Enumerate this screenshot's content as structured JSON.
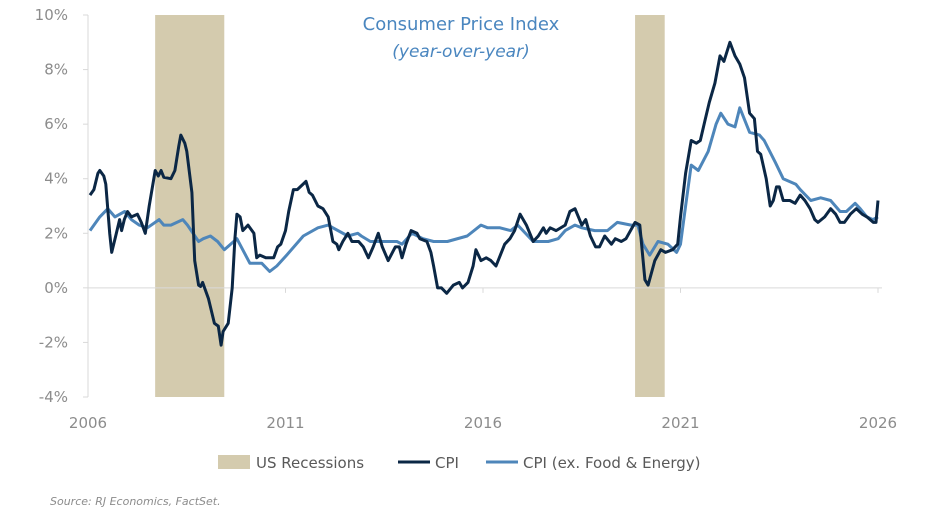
{
  "chart_data": {
    "type": "line",
    "title": "Consumer Price Index",
    "subtitle": "(year-over-year)",
    "xlabel": "",
    "ylabel": "",
    "xlim": [
      2006,
      2026
    ],
    "ylim": [
      -4,
      10
    ],
    "x_ticks": [
      "2006",
      "2011",
      "2016",
      "2021",
      "2026"
    ],
    "y_ticks": [
      "10%",
      "8%",
      "6%",
      "4%",
      "2%",
      "0%",
      "-2%",
      "-4%"
    ],
    "grid": false,
    "legend_position": "bottom",
    "colors": {
      "recession": "#d4cbae",
      "cpi": "#0b2745",
      "core": "#4e86ba",
      "title": "#4a86bf"
    },
    "recessions": {
      "name": "US Recessions",
      "periods": [
        [
          2007.7,
          2009.45
        ],
        [
          2019.85,
          2020.6
        ]
      ]
    },
    "series": [
      {
        "name": "CPI",
        "points": [
          [
            2006.05,
            3.4
          ],
          [
            2006.15,
            3.6
          ],
          [
            2006.25,
            4.2
          ],
          [
            2006.3,
            4.3
          ],
          [
            2006.4,
            4.1
          ],
          [
            2006.45,
            3.8
          ],
          [
            2006.55,
            2.0
          ],
          [
            2006.6,
            1.3
          ],
          [
            2006.7,
            1.9
          ],
          [
            2006.8,
            2.5
          ],
          [
            2006.85,
            2.1
          ],
          [
            2006.92,
            2.5
          ],
          [
            2007.0,
            2.8
          ],
          [
            2007.1,
            2.6
          ],
          [
            2007.25,
            2.7
          ],
          [
            2007.35,
            2.4
          ],
          [
            2007.45,
            2.0
          ],
          [
            2007.55,
            3.0
          ],
          [
            2007.7,
            4.3
          ],
          [
            2007.78,
            4.1
          ],
          [
            2007.85,
            4.3
          ],
          [
            2007.92,
            4.05
          ],
          [
            2008.1,
            4.0
          ],
          [
            2008.2,
            4.3
          ],
          [
            2008.3,
            5.2
          ],
          [
            2008.35,
            5.6
          ],
          [
            2008.45,
            5.3
          ],
          [
            2008.5,
            5.0
          ],
          [
            2008.63,
            3.5
          ],
          [
            2008.7,
            1.0
          ],
          [
            2008.8,
            0.1
          ],
          [
            2008.85,
            0.05
          ],
          [
            2008.9,
            0.2
          ],
          [
            2009.05,
            -0.4
          ],
          [
            2009.2,
            -1.3
          ],
          [
            2009.3,
            -1.4
          ],
          [
            2009.37,
            -2.1
          ],
          [
            2009.42,
            -1.6
          ],
          [
            2009.55,
            -1.3
          ],
          [
            2009.65,
            0.0
          ],
          [
            2009.72,
            1.8
          ],
          [
            2009.77,
            2.7
          ],
          [
            2009.85,
            2.6
          ],
          [
            2009.92,
            2.1
          ],
          [
            2010.05,
            2.3
          ],
          [
            2010.2,
            2.0
          ],
          [
            2010.27,
            1.1
          ],
          [
            2010.35,
            1.2
          ],
          [
            2010.5,
            1.1
          ],
          [
            2010.7,
            1.1
          ],
          [
            2010.8,
            1.5
          ],
          [
            2010.88,
            1.6
          ],
          [
            2011.0,
            2.1
          ],
          [
            2011.08,
            2.8
          ],
          [
            2011.2,
            3.6
          ],
          [
            2011.3,
            3.6
          ],
          [
            2011.52,
            3.9
          ],
          [
            2011.6,
            3.5
          ],
          [
            2011.68,
            3.4
          ],
          [
            2011.82,
            3.0
          ],
          [
            2011.95,
            2.9
          ],
          [
            2012.08,
            2.6
          ],
          [
            2012.2,
            1.7
          ],
          [
            2012.3,
            1.6
          ],
          [
            2012.35,
            1.4
          ],
          [
            2012.45,
            1.7
          ],
          [
            2012.58,
            2.0
          ],
          [
            2012.68,
            1.7
          ],
          [
            2012.85,
            1.7
          ],
          [
            2012.97,
            1.5
          ],
          [
            2013.1,
            1.1
          ],
          [
            2013.22,
            1.5
          ],
          [
            2013.35,
            2.0
          ],
          [
            2013.45,
            1.5
          ],
          [
            2013.6,
            1.0
          ],
          [
            2013.78,
            1.5
          ],
          [
            2013.88,
            1.5
          ],
          [
            2013.95,
            1.1
          ],
          [
            2014.05,
            1.6
          ],
          [
            2014.18,
            2.1
          ],
          [
            2014.33,
            2.0
          ],
          [
            2014.4,
            1.8
          ],
          [
            2014.58,
            1.7
          ],
          [
            2014.68,
            1.3
          ],
          [
            2014.75,
            0.8
          ],
          [
            2014.85,
            0.0
          ],
          [
            2014.95,
            0.0
          ],
          [
            2015.08,
            -0.2
          ],
          [
            2015.25,
            0.1
          ],
          [
            2015.4,
            0.2
          ],
          [
            2015.48,
            0.0
          ],
          [
            2015.62,
            0.2
          ],
          [
            2015.75,
            0.8
          ],
          [
            2015.82,
            1.4
          ],
          [
            2015.95,
            1.0
          ],
          [
            2016.08,
            1.1
          ],
          [
            2016.2,
            1.0
          ],
          [
            2016.33,
            0.8
          ],
          [
            2016.55,
            1.6
          ],
          [
            2016.68,
            1.8
          ],
          [
            2016.8,
            2.1
          ],
          [
            2016.94,
            2.7
          ],
          [
            2017.1,
            2.3
          ],
          [
            2017.27,
            1.7
          ],
          [
            2017.4,
            1.9
          ],
          [
            2017.53,
            2.2
          ],
          [
            2017.6,
            2.0
          ],
          [
            2017.7,
            2.2
          ],
          [
            2017.85,
            2.1
          ],
          [
            2018.08,
            2.3
          ],
          [
            2018.2,
            2.8
          ],
          [
            2018.33,
            2.9
          ],
          [
            2018.5,
            2.3
          ],
          [
            2018.6,
            2.5
          ],
          [
            2018.72,
            1.9
          ],
          [
            2018.85,
            1.5
          ],
          [
            2018.95,
            1.5
          ],
          [
            2019.08,
            1.9
          ],
          [
            2019.25,
            1.6
          ],
          [
            2019.35,
            1.8
          ],
          [
            2019.5,
            1.7
          ],
          [
            2019.62,
            1.8
          ],
          [
            2019.85,
            2.4
          ],
          [
            2019.97,
            2.3
          ],
          [
            2020.1,
            0.3
          ],
          [
            2020.18,
            0.1
          ],
          [
            2020.35,
            1.0
          ],
          [
            2020.5,
            1.4
          ],
          [
            2020.62,
            1.3
          ],
          [
            2020.8,
            1.4
          ],
          [
            2020.93,
            1.6
          ],
          [
            2021.0,
            2.6
          ],
          [
            2021.13,
            4.2
          ],
          [
            2021.27,
            5.4
          ],
          [
            2021.4,
            5.3
          ],
          [
            2021.5,
            5.4
          ],
          [
            2021.63,
            6.2
          ],
          [
            2021.73,
            6.8
          ],
          [
            2021.87,
            7.5
          ],
          [
            2022.0,
            8.5
          ],
          [
            2022.1,
            8.3
          ],
          [
            2022.25,
            9.0
          ],
          [
            2022.38,
            8.5
          ],
          [
            2022.5,
            8.2
          ],
          [
            2022.62,
            7.7
          ],
          [
            2022.75,
            6.4
          ],
          [
            2022.87,
            6.2
          ],
          [
            2022.95,
            5.0
          ],
          [
            2023.03,
            4.9
          ],
          [
            2023.17,
            4.0
          ],
          [
            2023.27,
            3.0
          ],
          [
            2023.35,
            3.2
          ],
          [
            2023.43,
            3.7
          ],
          [
            2023.5,
            3.7
          ],
          [
            2023.6,
            3.2
          ],
          [
            2023.77,
            3.2
          ],
          [
            2023.9,
            3.1
          ],
          [
            2024.03,
            3.4
          ],
          [
            2024.15,
            3.2
          ],
          [
            2024.28,
            2.9
          ],
          [
            2024.4,
            2.5
          ],
          [
            2024.48,
            2.4
          ],
          [
            2024.65,
            2.6
          ],
          [
            2024.8,
            2.9
          ],
          [
            2024.93,
            2.7
          ],
          [
            2025.04,
            2.4
          ],
          [
            2025.15,
            2.4
          ],
          [
            2025.3,
            2.7
          ],
          [
            2025.45,
            2.9
          ],
          [
            2025.6,
            2.7
          ],
          [
            2025.72,
            2.6
          ],
          [
            2025.88,
            2.4
          ],
          [
            2025.95,
            2.4
          ],
          [
            2026.0,
            3.2
          ]
        ]
      },
      {
        "name": "CPI (ex. Food & Energy)",
        "points": [
          [
            2006.05,
            2.1
          ],
          [
            2006.3,
            2.6
          ],
          [
            2006.5,
            2.9
          ],
          [
            2006.68,
            2.6
          ],
          [
            2006.93,
            2.8
          ],
          [
            2007.1,
            2.5
          ],
          [
            2007.3,
            2.3
          ],
          [
            2007.5,
            2.2
          ],
          [
            2007.8,
            2.5
          ],
          [
            2007.92,
            2.3
          ],
          [
            2008.1,
            2.3
          ],
          [
            2008.4,
            2.5
          ],
          [
            2008.52,
            2.3
          ],
          [
            2008.8,
            1.7
          ],
          [
            2008.92,
            1.8
          ],
          [
            2009.1,
            1.9
          ],
          [
            2009.28,
            1.7
          ],
          [
            2009.45,
            1.4
          ],
          [
            2009.77,
            1.8
          ],
          [
            2010.1,
            0.9
          ],
          [
            2010.4,
            0.9
          ],
          [
            2010.6,
            0.6
          ],
          [
            2010.78,
            0.8
          ],
          [
            2011.03,
            1.2
          ],
          [
            2011.45,
            1.9
          ],
          [
            2011.82,
            2.2
          ],
          [
            2012.08,
            2.3
          ],
          [
            2012.2,
            2.2
          ],
          [
            2012.58,
            1.9
          ],
          [
            2012.83,
            2.0
          ],
          [
            2012.92,
            1.9
          ],
          [
            2013.15,
            1.7
          ],
          [
            2013.48,
            1.7
          ],
          [
            2013.82,
            1.7
          ],
          [
            2013.95,
            1.6
          ],
          [
            2014.2,
            2.0
          ],
          [
            2014.48,
            1.8
          ],
          [
            2014.75,
            1.7
          ],
          [
            2015.1,
            1.7
          ],
          [
            2015.6,
            1.9
          ],
          [
            2015.95,
            2.3
          ],
          [
            2016.12,
            2.2
          ],
          [
            2016.43,
            2.2
          ],
          [
            2016.7,
            2.1
          ],
          [
            2016.88,
            2.3
          ],
          [
            2017.27,
            1.7
          ],
          [
            2017.65,
            1.7
          ],
          [
            2017.9,
            1.8
          ],
          [
            2018.08,
            2.1
          ],
          [
            2018.33,
            2.3
          ],
          [
            2018.5,
            2.2
          ],
          [
            2018.83,
            2.1
          ],
          [
            2019.15,
            2.1
          ],
          [
            2019.4,
            2.4
          ],
          [
            2019.75,
            2.3
          ],
          [
            2019.92,
            2.3
          ],
          [
            2020.05,
            1.6
          ],
          [
            2020.22,
            1.2
          ],
          [
            2020.43,
            1.7
          ],
          [
            2020.68,
            1.6
          ],
          [
            2020.9,
            1.3
          ],
          [
            2021.0,
            1.6
          ],
          [
            2021.13,
            3.0
          ],
          [
            2021.27,
            4.5
          ],
          [
            2021.45,
            4.3
          ],
          [
            2021.7,
            5.0
          ],
          [
            2021.9,
            6.0
          ],
          [
            2022.02,
            6.4
          ],
          [
            2022.2,
            6.0
          ],
          [
            2022.38,
            5.9
          ],
          [
            2022.5,
            6.6
          ],
          [
            2022.75,
            5.7
          ],
          [
            2023.0,
            5.6
          ],
          [
            2023.12,
            5.4
          ],
          [
            2023.4,
            4.6
          ],
          [
            2023.6,
            4.0
          ],
          [
            2023.92,
            3.8
          ],
          [
            2024.03,
            3.6
          ],
          [
            2024.3,
            3.2
          ],
          [
            2024.55,
            3.3
          ],
          [
            2024.8,
            3.2
          ],
          [
            2025.04,
            2.8
          ],
          [
            2025.2,
            2.8
          ],
          [
            2025.42,
            3.1
          ],
          [
            2025.55,
            2.9
          ],
          [
            2025.72,
            2.6
          ],
          [
            2025.87,
            2.5
          ],
          [
            2026.0,
            2.6
          ]
        ]
      }
    ],
    "legend": [
      "US Recessions",
      "CPI",
      "CPI (ex. Food & Energy)"
    ],
    "source": "Source: RJ Economics, FactSet."
  }
}
